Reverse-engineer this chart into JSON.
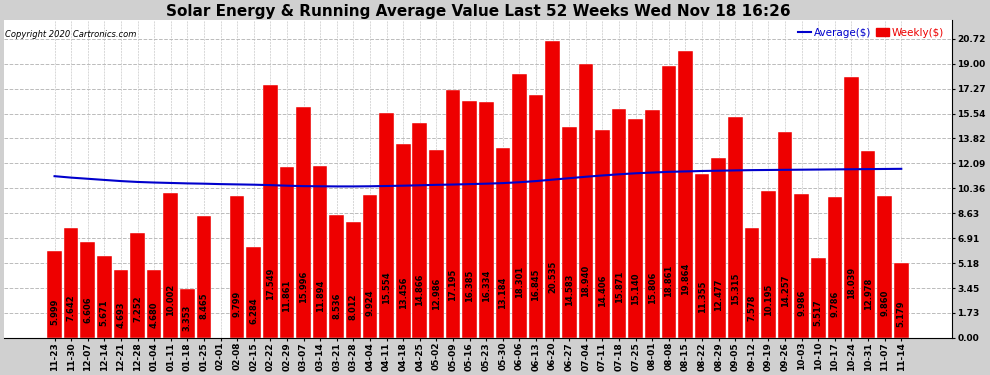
{
  "title": "Solar Energy & Running Average Value Last 52 Weeks Wed Nov 18 16:26",
  "copyright": "Copyright 2020 Cartronics.com",
  "background_color": "#d0d0d0",
  "plot_bg_color": "#ffffff",
  "bar_color": "#ee0000",
  "bar_edge_color": "#ffffff",
  "avg_line_color": "#0000cc",
  "legend_avg_label": "Average($)",
  "legend_weekly_label": "Weekly($)",
  "yticks": [
    0.0,
    1.73,
    3.45,
    5.18,
    6.91,
    8.63,
    10.36,
    12.09,
    13.82,
    15.54,
    17.27,
    19.0,
    20.72
  ],
  "categories": [
    "11-23",
    "11-30",
    "12-07",
    "12-14",
    "12-21",
    "12-28",
    "01-04",
    "01-11",
    "01-18",
    "01-25",
    "02-01",
    "02-08",
    "02-15",
    "02-22",
    "02-29",
    "03-07",
    "03-14",
    "03-21",
    "03-28",
    "04-04",
    "04-11",
    "04-18",
    "04-25",
    "05-02",
    "05-09",
    "05-16",
    "05-23",
    "05-30",
    "06-06",
    "06-13",
    "06-20",
    "06-27",
    "07-04",
    "07-11",
    "07-18",
    "07-25",
    "08-01",
    "08-08",
    "08-15",
    "08-22",
    "08-29",
    "09-05",
    "09-12",
    "09-19",
    "09-26",
    "10-03",
    "10-10",
    "10-17",
    "10-24",
    "10-31",
    "11-07",
    "11-14"
  ],
  "weekly_values": [
    5.999,
    7.642,
    6.606,
    5.671,
    4.693,
    7.252,
    4.68,
    10.002,
    3.353,
    8.465,
    0.008,
    9.799,
    6.284,
    17.549,
    11.861,
    15.996,
    11.894,
    8.536,
    8.012,
    9.924,
    15.554,
    13.456,
    14.866,
    12.986,
    17.195,
    16.385,
    16.334,
    13.184,
    18.301,
    16.845,
    20.535,
    14.583,
    18.94,
    14.406,
    15.871,
    15.14,
    15.806,
    18.861,
    19.864,
    11.355,
    12.477,
    15.315,
    7.578,
    10.195,
    14.257,
    9.986,
    5.517,
    9.786,
    18.039,
    12.978,
    9.86,
    5.179
  ],
  "avg_values": [
    11.2,
    11.1,
    11.02,
    10.94,
    10.86,
    10.8,
    10.76,
    10.73,
    10.7,
    10.68,
    10.65,
    10.63,
    10.61,
    10.58,
    10.54,
    10.51,
    10.5,
    10.49,
    10.49,
    10.5,
    10.52,
    10.54,
    10.57,
    10.6,
    10.62,
    10.65,
    10.68,
    10.72,
    10.78,
    10.86,
    10.96,
    11.06,
    11.16,
    11.25,
    11.33,
    11.4,
    11.45,
    11.5,
    11.53,
    11.56,
    11.58,
    11.6,
    11.62,
    11.63,
    11.64,
    11.65,
    11.66,
    11.67,
    11.68,
    11.69,
    11.7,
    11.71
  ],
  "ylim": [
    0.0,
    22.0
  ],
  "grid_color": "#bbbbbb",
  "title_fontsize": 11,
  "tick_fontsize": 6.5,
  "value_label_fontsize": 6.0
}
